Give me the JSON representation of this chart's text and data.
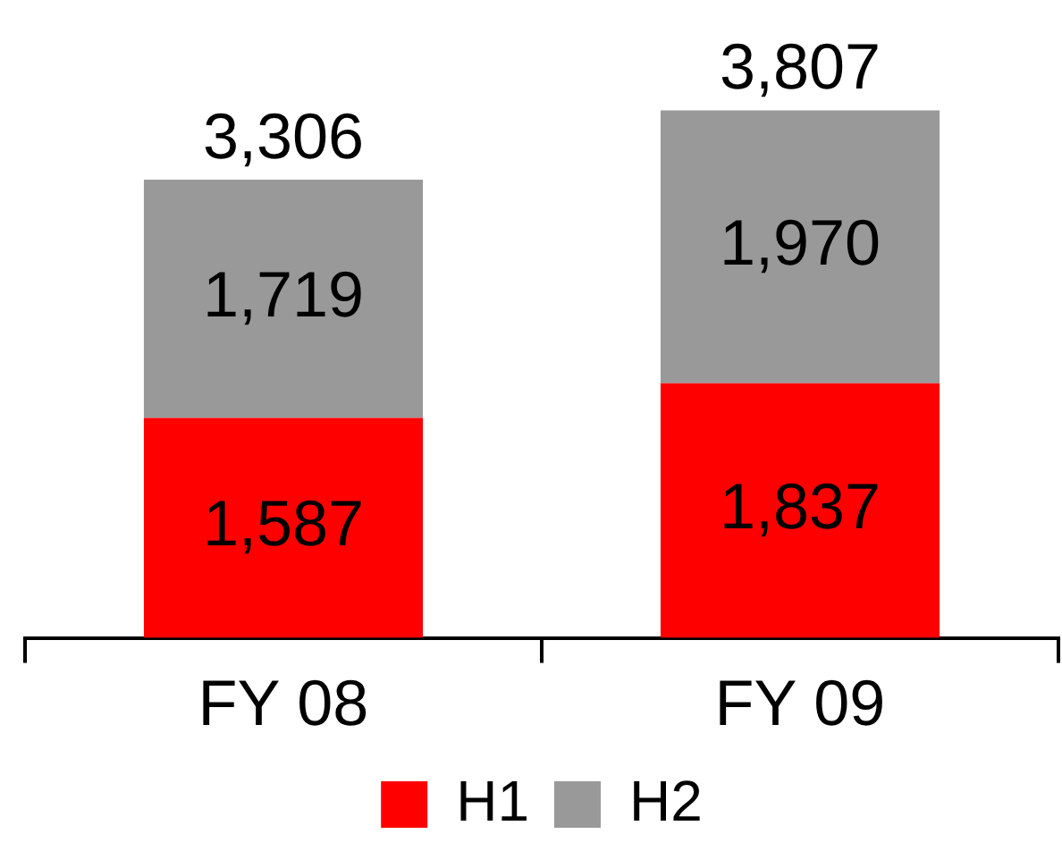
{
  "chart_data": {
    "type": "bar",
    "stacked": true,
    "categories": [
      "FY 08",
      "FY 09"
    ],
    "series": [
      {
        "name": "H1",
        "color": "#ff0000",
        "values": [
          1587,
          1837
        ],
        "value_labels": [
          "1,587",
          "1,837"
        ]
      },
      {
        "name": "H2",
        "color": "#999999",
        "values": [
          1719,
          1970
        ],
        "value_labels": [
          "1,719",
          "1,970"
        ]
      }
    ],
    "totals": [
      "3,306",
      "3,807"
    ],
    "legend": "bottom",
    "tick_labels": "x"
  }
}
